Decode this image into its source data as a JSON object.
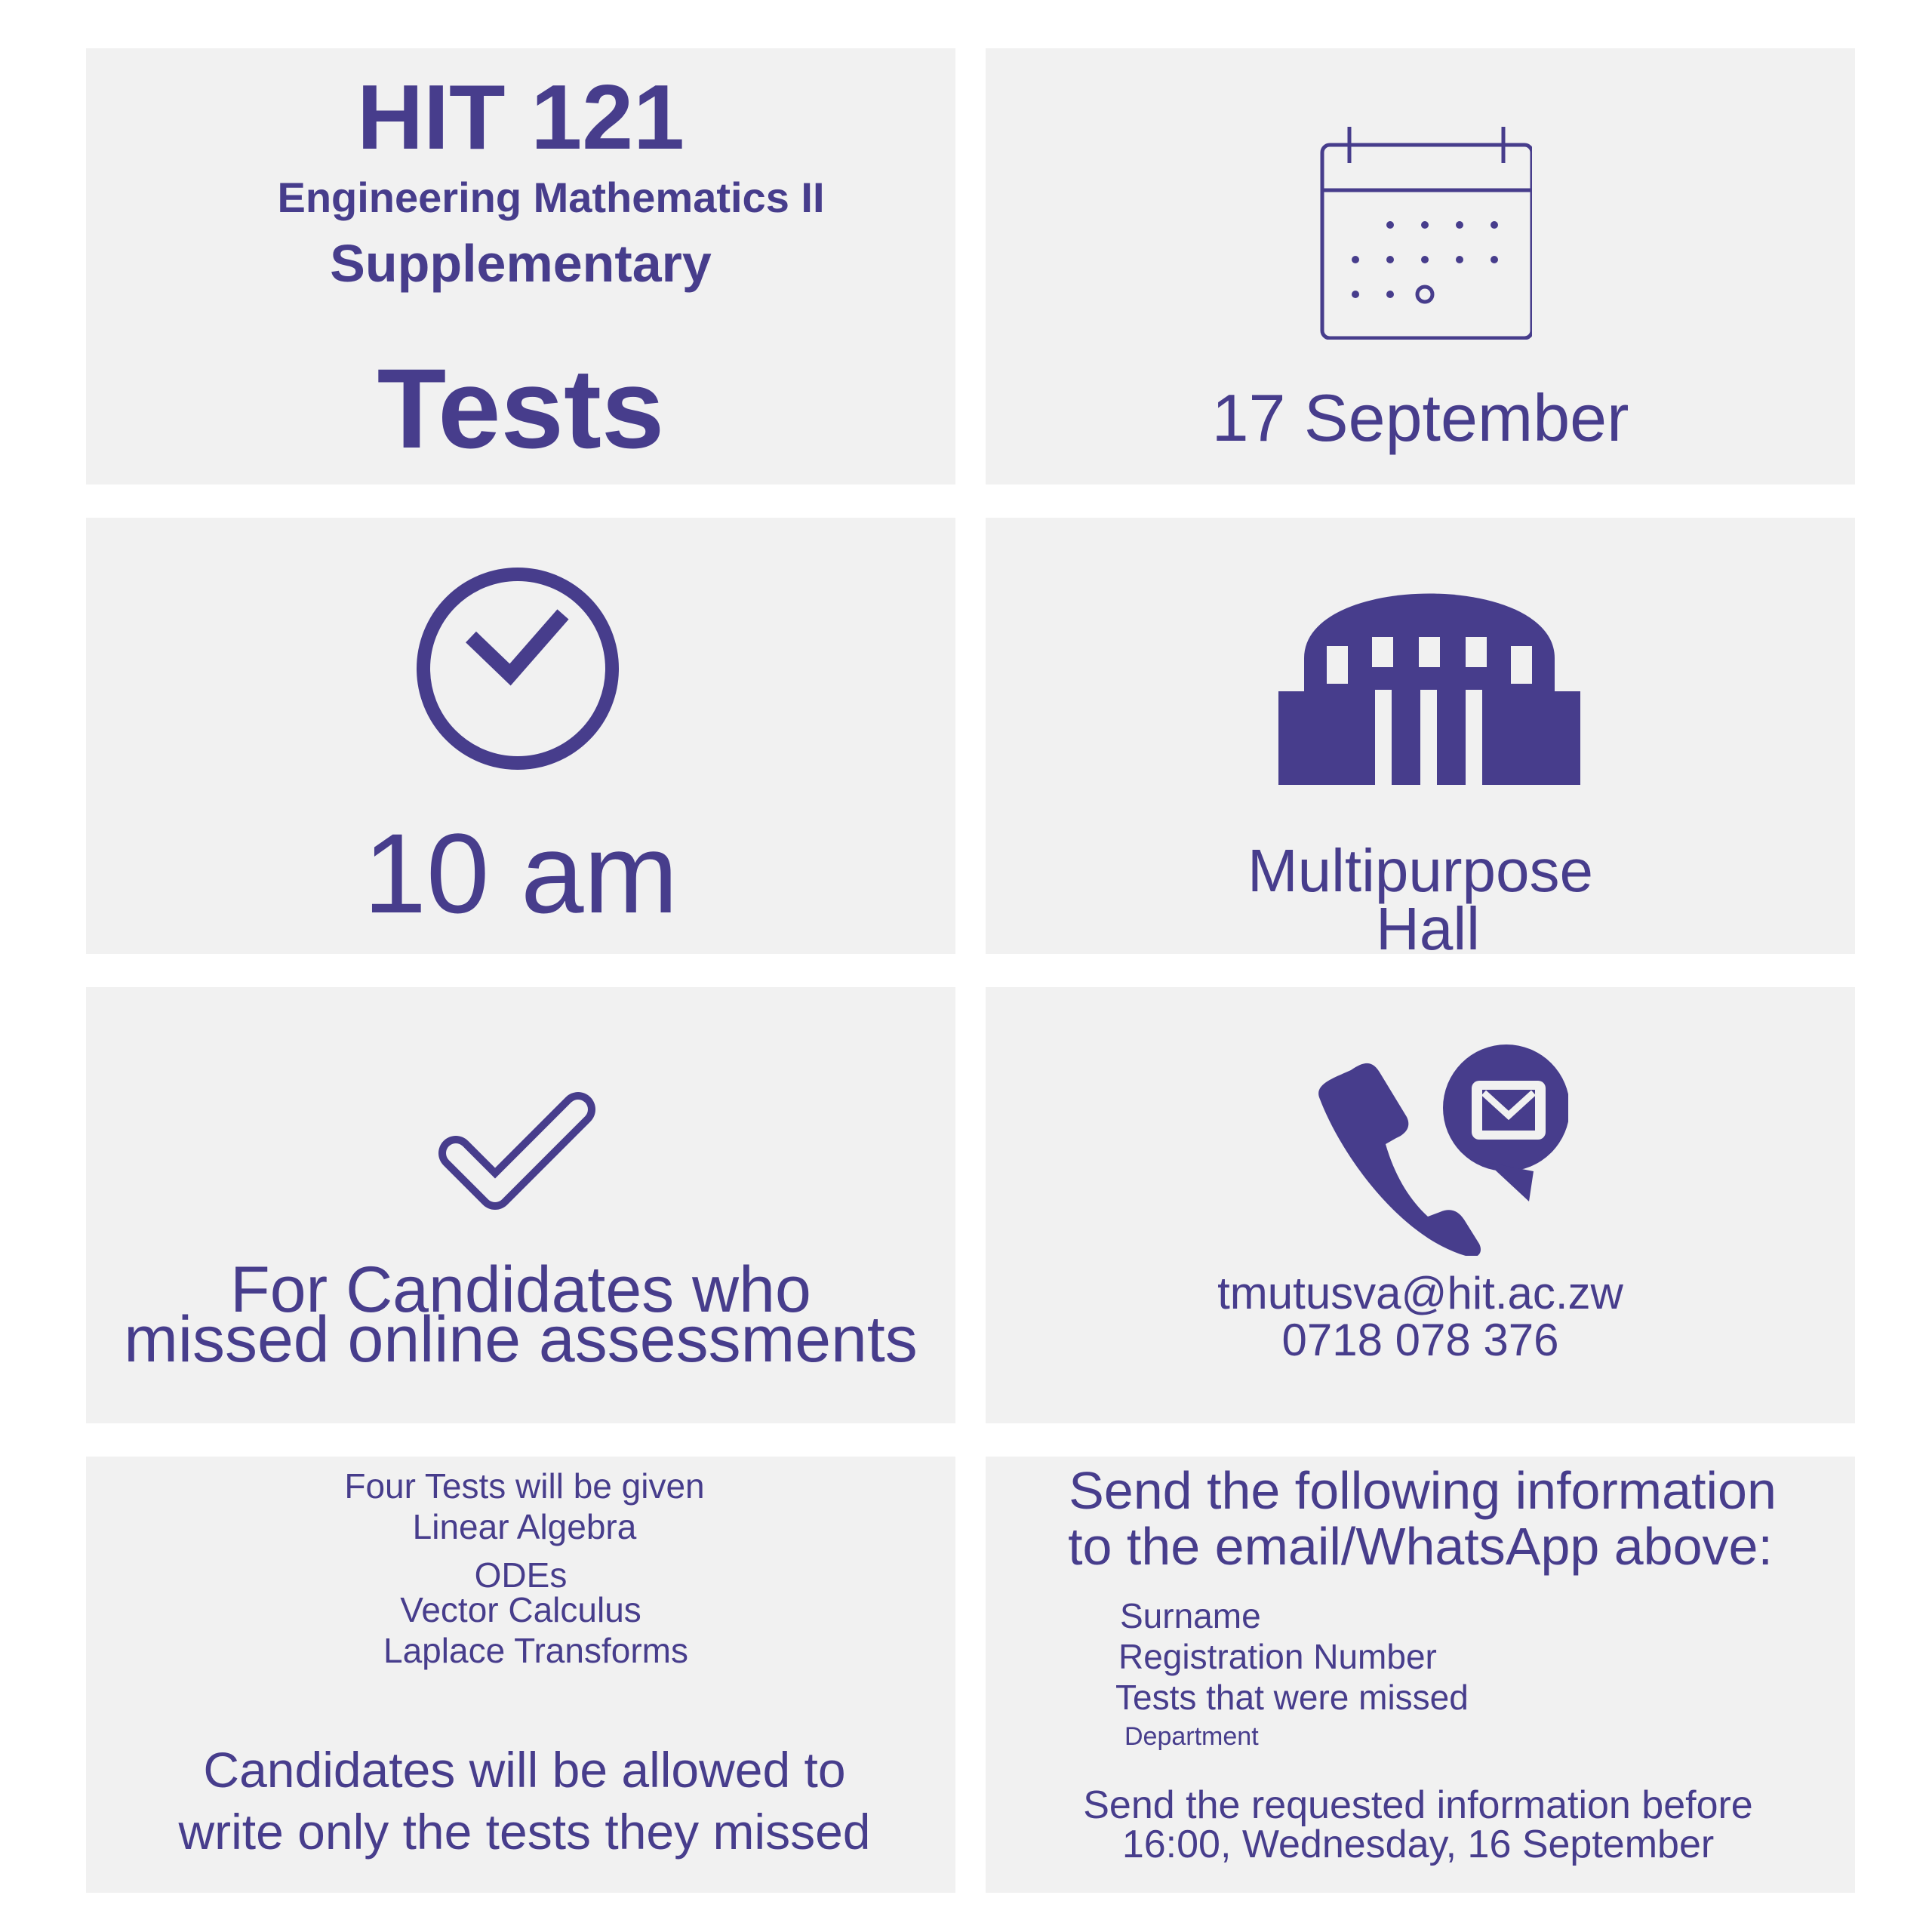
{
  "colors": {
    "accent": "#473d8c",
    "panel": "#f1f1f1",
    "background": "#ffffff"
  },
  "course": {
    "code": "HIT 121",
    "name": "Engineering Mathematics II",
    "type": "Supplementary",
    "heading": "Tests"
  },
  "date": {
    "icon": "calendar-icon",
    "text": "17 September"
  },
  "time": {
    "icon": "clock-icon",
    "text": "10 am"
  },
  "venue": {
    "icon": "building-icon",
    "line1": "Multipurpose",
    "line2": "Hall"
  },
  "eligibility": {
    "icon": "checkmark-icon",
    "line1": "For Candidates who",
    "line2": "missed online assessments"
  },
  "contact": {
    "icon": "phone-email-icon",
    "email": "tmutusva@hit.ac.zw",
    "phone": "0718 078 376"
  },
  "tests": {
    "intro": "Four Tests will be given",
    "items": [
      "Linear Algebra",
      "ODEs",
      "Vector Calculus",
      "Laplace Transforms"
    ],
    "note_line1": "Candidates will be allowed to",
    "note_line2": "write only the tests they missed"
  },
  "submission": {
    "heading_line1": "Send the following information",
    "heading_line2": "to the email/WhatsApp above:",
    "fields": [
      "Surname",
      "Registration Number",
      "Tests that were missed",
      "Department"
    ],
    "deadline_line1": "Send the requested information before",
    "deadline_line2": "16:00, Wednesday, 16 September"
  }
}
